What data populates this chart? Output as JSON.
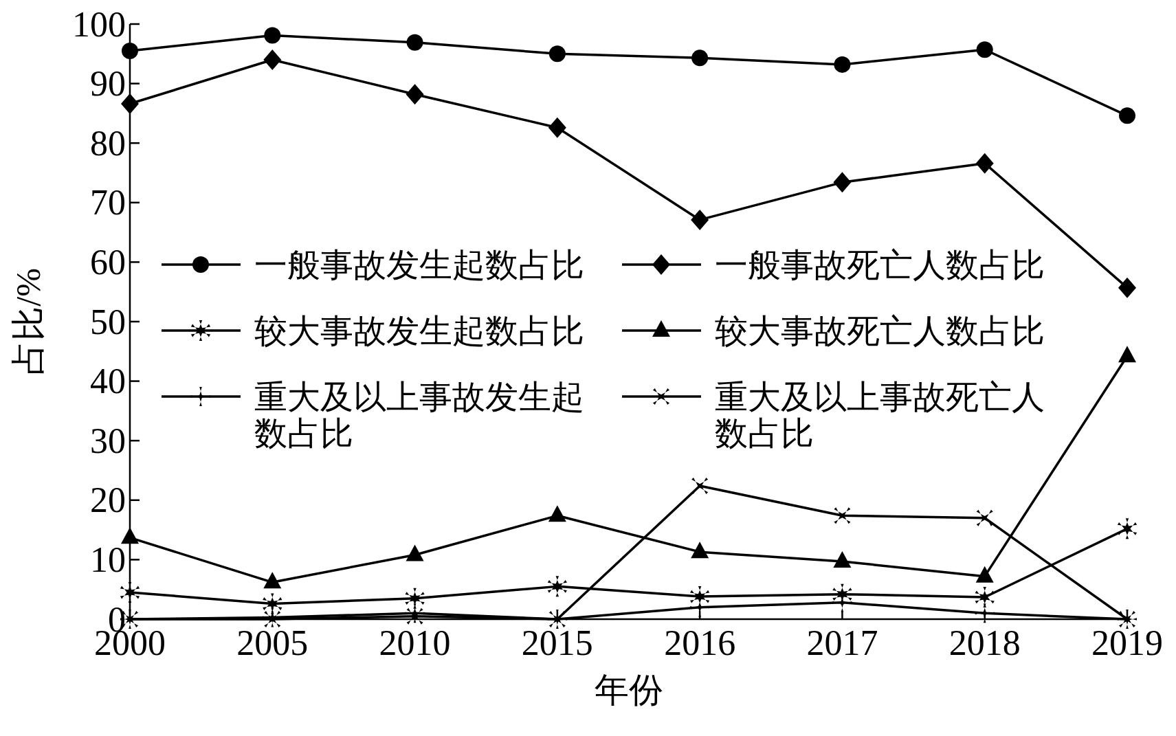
{
  "chart_data": {
    "type": "line",
    "xlabel": "年份",
    "ylabel": "占比/%",
    "categories": [
      "2000",
      "2005",
      "2010",
      "2015",
      "2016",
      "2017",
      "2018",
      "2019"
    ],
    "ylim": [
      0,
      100
    ],
    "yticks": [
      0,
      10,
      20,
      30,
      40,
      50,
      60,
      70,
      80,
      90,
      100
    ],
    "legend": "center",
    "grid": false,
    "series": [
      {
        "name": "一般事故发生起数占比",
        "color": "#000000",
        "marker": "circle",
        "values": [
          95.5,
          98.1,
          96.9,
          95.0,
          94.3,
          93.2,
          95.7,
          84.6
        ]
      },
      {
        "name": "一般事故死亡人数占比",
        "color": "#000000",
        "marker": "diamond",
        "values": [
          86.6,
          94.0,
          88.2,
          82.6,
          67.1,
          73.4,
          76.6,
          55.7
        ]
      },
      {
        "name": "较大事故发生起数占比",
        "color": "#000000",
        "marker": "star",
        "values": [
          4.5,
          2.6,
          3.5,
          5.5,
          3.8,
          4.2,
          3.7,
          15.2
        ]
      },
      {
        "name": "较大事故死亡人数占比",
        "color": "#000000",
        "marker": "triangle",
        "values": [
          13.7,
          6.2,
          10.8,
          17.4,
          11.3,
          9.7,
          7.2,
          44.2
        ]
      },
      {
        "name": "重大及以上事故发生起数占比",
        "color": "#000000",
        "marker": "plus",
        "values": [
          0,
          0.3,
          1.0,
          0,
          2.0,
          2.8,
          1.0,
          0
        ]
      },
      {
        "name": "重大及以上事故死亡人数占比",
        "color": "#000000",
        "marker": "cross",
        "values": [
          0,
          0,
          0.5,
          0,
          22.4,
          17.4,
          17.0,
          0
        ]
      }
    ]
  }
}
